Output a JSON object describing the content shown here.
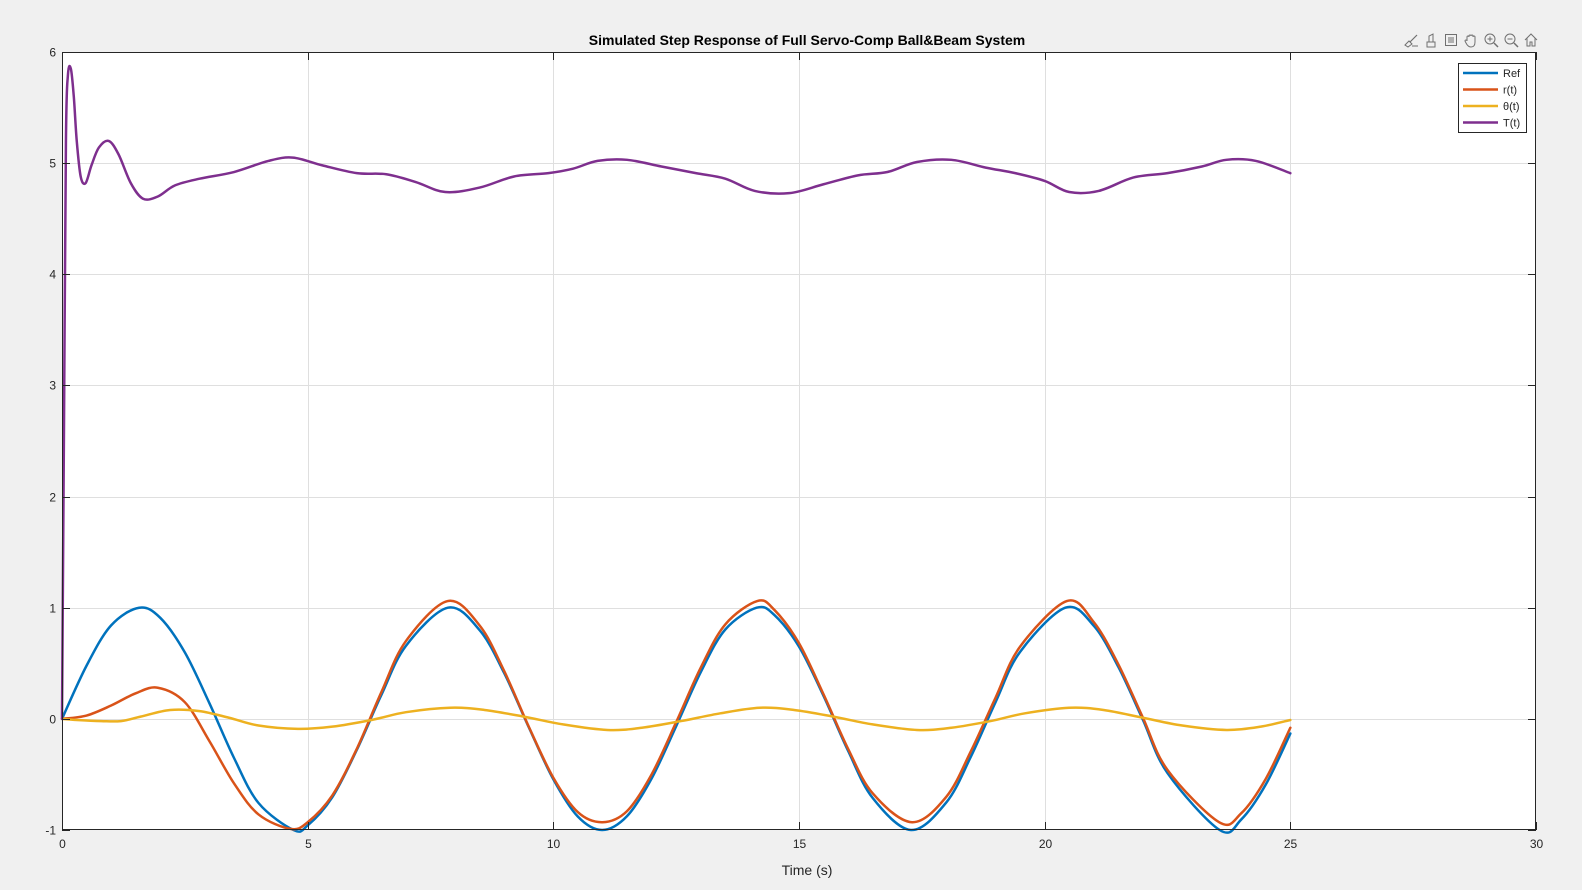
{
  "toolbar": {
    "icons": [
      "brush-icon",
      "data-tips-icon",
      "rotate-icon",
      "pan-icon",
      "zoom-in-icon",
      "zoom-out-icon",
      "home-icon"
    ]
  },
  "chart_data": {
    "type": "line",
    "title": "Simulated Step Response of Full Servo-Comp Ball&Beam System",
    "xlabel": "Time (s)",
    "ylabel": "",
    "xlim": [
      0,
      30
    ],
    "ylim": [
      -1,
      6
    ],
    "xticks": [
      0,
      5,
      10,
      15,
      20,
      25,
      30
    ],
    "yticks": [
      -1,
      0,
      1,
      2,
      3,
      4,
      5,
      6
    ],
    "grid": true,
    "legend_position": "top-right",
    "series": [
      {
        "name": "Ref",
        "color": "#0072BD",
        "x": [
          0,
          0.5,
          1,
          1.5708,
          2,
          2.5,
          3,
          3.5,
          4,
          4.7124,
          5,
          5.5,
          6,
          6.5,
          7,
          7.854,
          8.5,
          9,
          9.5,
          10,
          10.5,
          10.9956,
          11.5,
          12,
          12.5,
          13,
          13.5,
          14.1372,
          14.5,
          15,
          15.5,
          16,
          16.5,
          17.2788,
          18,
          18.5,
          19,
          19.5,
          20.4204,
          21,
          21.5,
          22,
          22.5,
          23.5619,
          24,
          24.5,
          25
        ],
        "y": [
          0,
          0.479,
          0.841,
          1.0,
          0.909,
          0.598,
          0.141,
          -0.351,
          -0.757,
          -1.0,
          -0.959,
          -0.706,
          -0.279,
          0.215,
          0.657,
          1.0,
          0.798,
          0.412,
          -0.075,
          -0.544,
          -0.88,
          -1.0,
          -0.875,
          -0.537,
          -0.066,
          0.42,
          0.804,
          1.0,
          0.934,
          0.65,
          0.206,
          -0.288,
          -0.712,
          -1.0,
          -0.751,
          -0.338,
          0.15,
          0.603,
          1.0,
          0.837,
          0.467,
          -0.009,
          -0.488,
          -1.0,
          -0.906,
          -0.591,
          -0.132
        ]
      },
      {
        "name": "r(t)",
        "color": "#D95319",
        "x": [
          0,
          0.5,
          1,
          1.5,
          1.95,
          2.5,
          3,
          3.5,
          4,
          4.65,
          5,
          5.5,
          6,
          6.5,
          7,
          7.85,
          8.5,
          9,
          9.5,
          10,
          10.5,
          11.0,
          11.5,
          12,
          12.5,
          13,
          13.5,
          14.15,
          14.5,
          15,
          15.5,
          16,
          16.5,
          17.3,
          18,
          18.5,
          19,
          19.5,
          20.45,
          21,
          21.5,
          22,
          22.5,
          23.55,
          24,
          24.5,
          25
        ],
        "y": [
          0,
          0.03,
          0.12,
          0.23,
          0.28,
          0.15,
          -0.2,
          -0.58,
          -0.86,
          -0.99,
          -0.93,
          -0.69,
          -0.27,
          0.24,
          0.7,
          1.06,
          0.84,
          0.43,
          -0.07,
          -0.53,
          -0.84,
          -0.93,
          -0.83,
          -0.5,
          -0.03,
          0.46,
          0.85,
          1.06,
          0.98,
          0.68,
          0.22,
          -0.27,
          -0.67,
          -0.93,
          -0.7,
          -0.29,
          0.19,
          0.65,
          1.06,
          0.87,
          0.49,
          0.01,
          -0.46,
          -0.93,
          -0.85,
          -0.54,
          -0.08
        ]
      },
      {
        "name": "θ(t)",
        "color": "#EDB120",
        "x": [
          0,
          0.3,
          0.8,
          1.2,
          1.6,
          2.2,
          2.8,
          3.4,
          4.0,
          4.8,
          5.5,
          6.3,
          7.0,
          7.9,
          8.6,
          9.4,
          10.2,
          11.1,
          11.8,
          12.6,
          13.4,
          14.2,
          14.9,
          15.7,
          16.5,
          17.4,
          18.1,
          18.9,
          19.6,
          20.5,
          21.2,
          22.0,
          22.8,
          23.7,
          24.4,
          25.0
        ],
        "y": [
          0,
          -0.01,
          -0.02,
          -0.02,
          0.02,
          0.08,
          0.07,
          0.01,
          -0.06,
          -0.09,
          -0.07,
          -0.01,
          0.06,
          0.1,
          0.08,
          0.02,
          -0.05,
          -0.1,
          -0.08,
          -0.02,
          0.05,
          0.1,
          0.08,
          0.02,
          -0.05,
          -0.1,
          -0.08,
          -0.02,
          0.05,
          0.1,
          0.08,
          0.01,
          -0.06,
          -0.1,
          -0.07,
          -0.01
        ]
      },
      {
        "name": "T(t)",
        "color": "#7E2F8E",
        "x": [
          0,
          0.04,
          0.08,
          0.12,
          0.18,
          0.24,
          0.3,
          0.38,
          0.48,
          0.6,
          0.75,
          0.95,
          1.15,
          1.4,
          1.65,
          1.95,
          2.3,
          2.8,
          3.5,
          4.2,
          4.7,
          5.3,
          6.0,
          6.6,
          7.2,
          7.8,
          8.5,
          9.2,
          9.9,
          10.4,
          10.9,
          11.5,
          12.2,
          12.9,
          13.5,
          14.1,
          14.8,
          15.5,
          16.2,
          16.8,
          17.4,
          18.1,
          18.8,
          19.4,
          20.0,
          20.5,
          21.1,
          21.8,
          22.5,
          23.2,
          23.7,
          24.3,
          25.0
        ],
        "y": [
          0,
          2.6,
          5.2,
          5.79,
          5.85,
          5.6,
          5.2,
          4.88,
          4.82,
          4.98,
          5.14,
          5.2,
          5.08,
          4.82,
          4.68,
          4.7,
          4.8,
          4.86,
          4.92,
          5.02,
          5.05,
          4.98,
          4.91,
          4.9,
          4.83,
          4.74,
          4.78,
          4.88,
          4.91,
          4.95,
          5.02,
          5.03,
          4.97,
          4.91,
          4.86,
          4.75,
          4.73,
          4.81,
          4.89,
          4.92,
          5.01,
          5.03,
          4.96,
          4.91,
          4.84,
          4.74,
          4.75,
          4.87,
          4.91,
          4.97,
          5.03,
          5.02,
          4.91
        ]
      }
    ]
  }
}
